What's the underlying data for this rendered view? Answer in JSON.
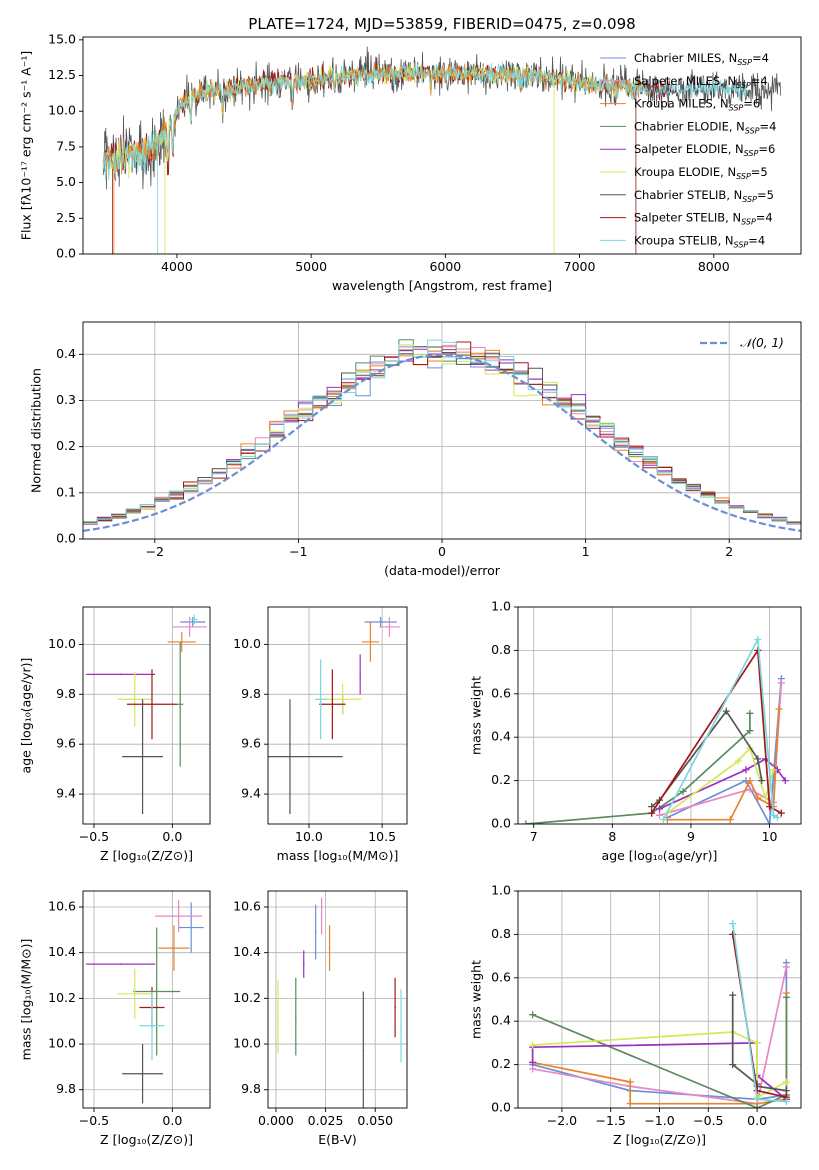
{
  "colors": {
    "chabrier_miles": "#6b8fd6",
    "salpeter_miles": "#e887c2",
    "kroupa_miles": "#e8822c",
    "chabrier_elodie": "#5a8a5e",
    "salpeter_elodie": "#9b30c0",
    "kroupa_elodie": "#d4e85a",
    "chabrier_stelib": "#555555",
    "salpeter_stelib": "#a01818",
    "kroupa_stelib": "#7ad8e0",
    "gauss": "#6b8fd6"
  },
  "chart_data": [
    {
      "id": "spectrum",
      "type": "line",
      "title": "PLATE=1724, MJD=53859, FIBERID=0475, z=0.098",
      "xlabel": "wavelength [Angstrom, rest frame]",
      "ylabel": "Flux [fλ10⁻¹⁷ erg cm⁻² s⁻¹ A⁻¹]",
      "xlim": [
        3300,
        8650
      ],
      "ylim": [
        0,
        15.2
      ],
      "xticks": [
        4000,
        5000,
        6000,
        7000,
        8000
      ],
      "yticks": [
        0.0,
        2.5,
        5.0,
        7.5,
        10.0,
        12.5,
        15.0
      ],
      "legend_position": "right",
      "legend": [
        {
          "label": "Chabrier MILES, N",
          "sub": "SSP",
          "suffix": "=4",
          "color": "chabrier_miles"
        },
        {
          "label": "Salpeter MILES, N",
          "sub": "SSP",
          "suffix": "=4",
          "color": "salpeter_miles"
        },
        {
          "label": "Kroupa MILES, N",
          "sub": "SSP",
          "suffix": "=6",
          "color": "kroupa_miles"
        },
        {
          "label": "Chabrier ELODIE, N",
          "sub": "SSP",
          "suffix": "=4",
          "color": "chabrier_elodie"
        },
        {
          "label": "Salpeter ELODIE, N",
          "sub": "SSP",
          "suffix": "=6",
          "color": "salpeter_elodie"
        },
        {
          "label": "Kroupa ELODIE, N",
          "sub": "SSP",
          "suffix": "=5",
          "color": "kroupa_elodie"
        },
        {
          "label": "Chabrier STELIB, N",
          "sub": "SSP",
          "suffix": "=5",
          "color": "chabrier_stelib"
        },
        {
          "label": "Salpeter STELIB, N",
          "sub": "SSP",
          "suffix": "=4",
          "color": "salpeter_stelib"
        },
        {
          "label": "Kroupa STELIB, N",
          "sub": "SSP",
          "suffix": "=4",
          "color": "kroupa_stelib"
        }
      ],
      "continuum": [
        [
          3450,
          6.8
        ],
        [
          3550,
          6.5
        ],
        [
          3650,
          7.2
        ],
        [
          3750,
          7.0
        ],
        [
          3850,
          7.6
        ],
        [
          3950,
          9.0
        ],
        [
          4050,
          10.6
        ],
        [
          4200,
          11.4
        ],
        [
          4400,
          11.6
        ],
        [
          4600,
          11.9
        ],
        [
          4800,
          12.1
        ],
        [
          5000,
          12.1
        ],
        [
          5200,
          12.4
        ],
        [
          5400,
          12.6
        ],
        [
          5600,
          12.6
        ],
        [
          5800,
          12.7
        ],
        [
          6000,
          12.6
        ],
        [
          6200,
          12.7
        ],
        [
          6400,
          12.6
        ],
        [
          6600,
          12.5
        ],
        [
          6800,
          12.3
        ],
        [
          7000,
          12.0
        ],
        [
          7200,
          11.8
        ],
        [
          7400,
          11.6
        ],
        [
          7600,
          11.5
        ],
        [
          7800,
          11.6
        ],
        [
          8000,
          11.6
        ],
        [
          8200,
          11.5
        ],
        [
          8400,
          11.4
        ]
      ]
    },
    {
      "id": "residuals",
      "type": "area",
      "xlabel": "(data-model)/error",
      "ylabel": "Normed distribution",
      "xlim": [
        -2.5,
        2.5
      ],
      "ylim": [
        0,
        0.47
      ],
      "xticks": [
        -2,
        -1,
        0,
        1,
        2
      ],
      "yticks": [
        0.0,
        0.1,
        0.2,
        0.3,
        0.4
      ],
      "grid": true,
      "legend_position": "top-right",
      "gauss_label": "𝒩(0, 1)",
      "bin_width": 0.1,
      "bin_start": -2.5
    },
    {
      "id": "age_vs_z",
      "type": "scatter",
      "xlabel": "Z [log₁₀(Z/Z⊙)]",
      "ylabel": "age  [log₁₀(age/yr)]",
      "xlim": [
        -0.57,
        0.24
      ],
      "ylim": [
        9.28,
        10.15
      ],
      "xticks": [
        -0.5,
        0.0
      ],
      "yticks": [
        9.4,
        9.6,
        9.8,
        10.0
      ],
      "grid": true,
      "points": [
        {
          "c": "chabrier_miles",
          "x": 0.13,
          "xe": 0.08,
          "y": 10.09,
          "ye": 0.02
        },
        {
          "c": "salpeter_miles",
          "x": 0.11,
          "xe": 0.11,
          "y": 10.07,
          "ye": 0.04
        },
        {
          "c": "kroupa_miles",
          "x": 0.06,
          "xe": 0.09,
          "y": 10.01,
          "ye": 0.04
        },
        {
          "c": "chabrier_elodie",
          "x": 0.05,
          "xe": 0.02,
          "y": 9.76,
          "ye": 0.25
        },
        {
          "c": "salpeter_elodie",
          "x": -0.33,
          "xe": 0.22,
          "y": 9.88,
          "ye": 0.0
        },
        {
          "c": "kroupa_elodie",
          "x": -0.24,
          "xe": 0.11,
          "y": 9.78,
          "ye": 0.11
        },
        {
          "c": "chabrier_stelib",
          "x": -0.19,
          "xe": 0.13,
          "y": 9.55,
          "ye": 0.23
        },
        {
          "c": "salpeter_stelib",
          "x": -0.13,
          "xe": 0.16,
          "y": 9.76,
          "ye": 0.14
        },
        {
          "c": "kroupa_stelib",
          "x": 0.14,
          "xe": 0.02,
          "y": 10.1,
          "ye": 0.02
        }
      ]
    },
    {
      "id": "age_vs_mass",
      "type": "scatter",
      "xlabel": "mass [log₁₀(M/M⊙)]",
      "ylabel": "",
      "xlim": [
        9.72,
        10.67
      ],
      "ylim": [
        9.28,
        10.15
      ],
      "xticks": [
        10.0,
        10.5
      ],
      "yticks": [
        9.4,
        9.6,
        9.8,
        10.0
      ],
      "grid": true,
      "points": [
        {
          "c": "chabrier_miles",
          "x": 10.49,
          "xe": 0.11,
          "y": 10.09,
          "ye": 0.02
        },
        {
          "c": "salpeter_miles",
          "x": 10.55,
          "xe": 0.07,
          "y": 10.07,
          "ye": 0.04
        },
        {
          "c": "kroupa_miles",
          "x": 10.42,
          "xe": 0.06,
          "y": 10.01,
          "ye": 0.08
        },
        {
          "c": "chabrier_elodie",
          "x": 10.23,
          "xe": 0.0,
          "y": 9.76,
          "ye": 0.04
        },
        {
          "c": "salpeter_elodie",
          "x": 10.35,
          "xe": 0.0,
          "y": 9.88,
          "ye": 0.08
        },
        {
          "c": "kroupa_elodie",
          "x": 10.23,
          "xe": 0.13,
          "y": 9.78,
          "ye": 0.06
        },
        {
          "c": "chabrier_stelib",
          "x": 9.87,
          "xe": 0.36,
          "y": 9.55,
          "ye": 0.23
        },
        {
          "c": "salpeter_stelib",
          "x": 10.16,
          "xe": 0.09,
          "y": 9.76,
          "ye": 0.14
        },
        {
          "c": "kroupa_stelib",
          "x": 10.08,
          "xe": 0.04,
          "y": 9.78,
          "ye": 0.16
        }
      ]
    },
    {
      "id": "weight_vs_age",
      "type": "line",
      "xlabel": "age  [log₁₀(age/yr)]",
      "ylabel": "mass weight",
      "xlim": [
        6.8,
        10.4
      ],
      "ylim": [
        0,
        1.0
      ],
      "xticks": [
        7,
        8,
        9,
        10
      ],
      "yticks": [
        0.0,
        0.2,
        0.4,
        0.6,
        0.8,
        1.0
      ],
      "grid": true,
      "series": [
        {
          "c": "chabrier_miles",
          "pts": [
            [
              8.7,
              0.03
            ],
            [
              9.7,
              0.2
            ],
            [
              10.0,
              0.0
            ],
            [
              10.15,
              0.67
            ]
          ]
        },
        {
          "c": "salpeter_miles",
          "pts": [
            [
              8.6,
              0.04
            ],
            [
              9.75,
              0.16
            ],
            [
              10.05,
              0.1
            ],
            [
              10.15,
              0.65
            ]
          ]
        },
        {
          "c": "kroupa_miles",
          "pts": [
            [
              8.7,
              0.02
            ],
            [
              9.5,
              0.02
            ],
            [
              9.75,
              0.2
            ],
            [
              9.85,
              0.12
            ],
            [
              10.05,
              0.08
            ],
            [
              10.12,
              0.53
            ]
          ]
        },
        {
          "c": "chabrier_elodie",
          "pts": [
            [
              6.9,
              0.0
            ],
            [
              8.5,
              0.05
            ],
            [
              8.9,
              0.15
            ],
            [
              9.75,
              0.43
            ],
            [
              9.75,
              0.51
            ]
          ]
        },
        {
          "c": "salpeter_elodie",
          "pts": [
            [
              8.6,
              0.07
            ],
            [
              9.7,
              0.25
            ],
            [
              9.95,
              0.3
            ],
            [
              10.1,
              0.25
            ],
            [
              10.2,
              0.2
            ]
          ]
        },
        {
          "c": "kroupa_elodie",
          "pts": [
            [
              8.7,
              0.05
            ],
            [
              9.6,
              0.29
            ],
            [
              9.75,
              0.35
            ],
            [
              9.95,
              0.12
            ],
            [
              10.05,
              0.25
            ]
          ]
        },
        {
          "c": "chabrier_stelib",
          "pts": [
            [
              8.5,
              0.08
            ],
            [
              8.6,
              0.11
            ],
            [
              9.45,
              0.52
            ],
            [
              9.85,
              0.3
            ],
            [
              9.9,
              0.2
            ]
          ]
        },
        {
          "c": "salpeter_stelib",
          "pts": [
            [
              8.5,
              0.05
            ],
            [
              9.85,
              0.8
            ],
            [
              10.0,
              0.08
            ],
            [
              10.15,
              0.05
            ]
          ]
        },
        {
          "c": "kroupa_stelib",
          "pts": [
            [
              8.65,
              0.02
            ],
            [
              9.85,
              0.85
            ],
            [
              10.05,
              0.04
            ],
            [
              10.1,
              0.03
            ]
          ]
        }
      ]
    },
    {
      "id": "mass_vs_z",
      "type": "scatter",
      "xlabel": "Z [log₁₀(Z/Z⊙)]",
      "ylabel": "mass [log₁₀(M/M⊙)]",
      "xlim": [
        -0.57,
        0.24
      ],
      "ylim": [
        9.72,
        10.67
      ],
      "xticks": [
        -0.5,
        0.0
      ],
      "yticks": [
        9.8,
        10.0,
        10.2,
        10.4,
        10.6
      ],
      "grid": true,
      "points": [
        {
          "c": "chabrier_miles",
          "x": 0.12,
          "xe": 0.08,
          "y": 10.51,
          "ye": 0.11
        },
        {
          "c": "salpeter_miles",
          "x": 0.04,
          "xe": 0.15,
          "y": 10.56,
          "ye": 0.07
        },
        {
          "c": "kroupa_miles",
          "x": 0.01,
          "xe": 0.1,
          "y": 10.42,
          "ye": 0.1
        },
        {
          "c": "chabrier_elodie",
          "x": -0.1,
          "xe": 0.15,
          "y": 10.23,
          "ye": 0.28
        },
        {
          "c": "salpeter_elodie",
          "x": -0.33,
          "xe": 0.22,
          "y": 10.35,
          "ye": 0.0
        },
        {
          "c": "kroupa_elodie",
          "x": -0.24,
          "xe": 0.11,
          "y": 10.22,
          "ye": 0.11
        },
        {
          "c": "chabrier_stelib",
          "x": -0.19,
          "xe": 0.13,
          "y": 9.87,
          "ye": 0.13
        },
        {
          "c": "salpeter_stelib",
          "x": -0.13,
          "xe": 0.08,
          "y": 10.16,
          "ye": 0.09
        },
        {
          "c": "kroupa_stelib",
          "x": -0.13,
          "xe": 0.08,
          "y": 10.08,
          "ye": 0.15
        }
      ]
    },
    {
      "id": "mass_vs_ebv",
      "type": "scatter",
      "xlabel": "E(B-V)",
      "ylabel": "",
      "xlim": [
        -0.004,
        0.066
      ],
      "ylim": [
        9.72,
        10.67
      ],
      "xticks": [
        0.0,
        0.025,
        0.05
      ],
      "xticklabels": [
        "0.000",
        "0.025",
        "0.050"
      ],
      "yticks": [
        9.8,
        10.0,
        10.2,
        10.4,
        10.6
      ],
      "grid": true,
      "points": [
        {
          "c": "chabrier_miles",
          "x": 0.02,
          "y": 10.49,
          "ye": 0.12
        },
        {
          "c": "salpeter_miles",
          "x": 0.023,
          "y": 10.56,
          "ye": 0.08
        },
        {
          "c": "kroupa_miles",
          "x": 0.027,
          "y": 10.42,
          "ye": 0.1
        },
        {
          "c": "chabrier_elodie",
          "x": 0.01,
          "y": 10.12,
          "ye": 0.17
        },
        {
          "c": "salpeter_elodie",
          "x": 0.014,
          "y": 10.35,
          "ye": 0.06
        },
        {
          "c": "kroupa_elodie",
          "x": 0.001,
          "y": 10.12,
          "ye": 0.16
        },
        {
          "c": "chabrier_stelib",
          "x": 0.044,
          "y": 9.97,
          "ye": 0.26
        },
        {
          "c": "salpeter_stelib",
          "x": 0.06,
          "y": 10.16,
          "ye": 0.13
        },
        {
          "c": "kroupa_stelib",
          "x": 0.063,
          "y": 10.08,
          "ye": 0.16
        }
      ]
    },
    {
      "id": "weight_vs_z",
      "type": "line",
      "xlabel": "Z [log₁₀(Z/Z⊙)]",
      "ylabel": "mass weight",
      "xlim": [
        -2.45,
        0.45
      ],
      "ylim": [
        0,
        1.0
      ],
      "xticks": [
        -2.0,
        -1.5,
        -1.0,
        -0.5,
        0.0
      ],
      "yticks": [
        0.0,
        0.2,
        0.4,
        0.6,
        0.8,
        1.0
      ],
      "grid": true,
      "series": [
        {
          "c": "chabrier_miles",
          "pts": [
            [
              -2.3,
              0.2
            ],
            [
              -1.3,
              0.08
            ],
            [
              0.0,
              0.04
            ],
            [
              0.3,
              0.06
            ],
            [
              0.3,
              0.67
            ]
          ]
        },
        {
          "c": "salpeter_miles",
          "pts": [
            [
              -2.3,
              0.18
            ],
            [
              -1.3,
              0.1
            ],
            [
              0.0,
              0.02
            ],
            [
              0.3,
              0.65
            ]
          ]
        },
        {
          "c": "kroupa_miles",
          "pts": [
            [
              -2.3,
              0.21
            ],
            [
              -1.3,
              0.12
            ],
            [
              -1.3,
              0.02
            ],
            [
              0.0,
              0.02
            ],
            [
              0.3,
              0.04
            ],
            [
              0.3,
              0.53
            ]
          ]
        },
        {
          "c": "chabrier_elodie",
          "pts": [
            [
              -2.3,
              0.43
            ],
            [
              0.0,
              0.0
            ],
            [
              0.3,
              0.06
            ],
            [
              0.3,
              0.51
            ]
          ]
        },
        {
          "c": "salpeter_elodie",
          "pts": [
            [
              -2.3,
              0.21
            ],
            [
              -2.3,
              0.28
            ],
            [
              0.0,
              0.3
            ],
            [
              0.0,
              0.15
            ],
            [
              0.3,
              0.04
            ]
          ]
        },
        {
          "c": "kroupa_elodie",
          "pts": [
            [
              -2.3,
              0.29
            ],
            [
              -0.25,
              0.35
            ],
            [
              0.0,
              0.3
            ],
            [
              0.0,
              0.05
            ],
            [
              0.3,
              0.12
            ]
          ]
        },
        {
          "c": "chabrier_stelib",
          "pts": [
            [
              -0.25,
              0.52
            ],
            [
              -0.25,
              0.2
            ],
            [
              0.0,
              0.11
            ],
            [
              0.0,
              0.1
            ],
            [
              0.3,
              0.08
            ]
          ]
        },
        {
          "c": "salpeter_stelib",
          "pts": [
            [
              -0.25,
              0.8
            ],
            [
              0.0,
              0.08
            ],
            [
              0.3,
              0.05
            ]
          ]
        },
        {
          "c": "kroupa_stelib",
          "pts": [
            [
              -0.25,
              0.85
            ],
            [
              0.0,
              0.04
            ],
            [
              0.3,
              0.03
            ]
          ]
        }
      ]
    }
  ]
}
